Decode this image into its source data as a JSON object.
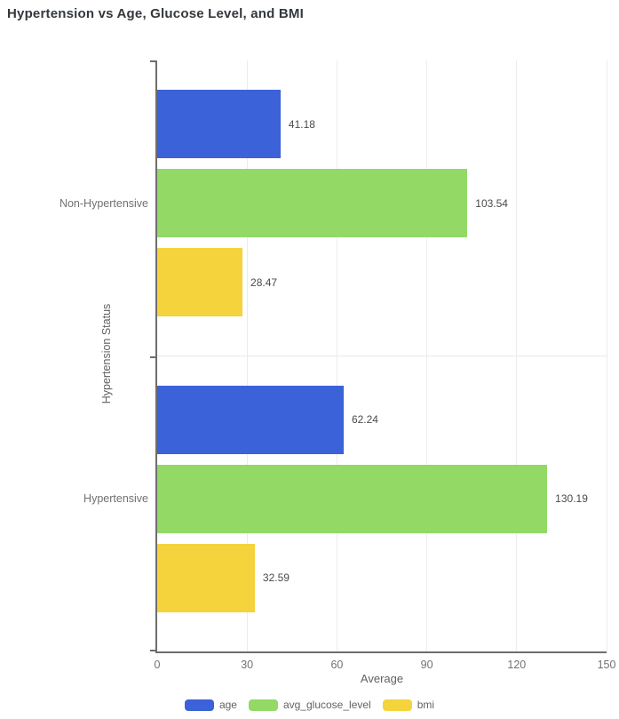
{
  "page": {
    "title": "Hypertension vs Age, Glucose Level, and BMI"
  },
  "chart_data": {
    "type": "bar",
    "orientation": "horizontal",
    "title": "Hypertension vs Age, Glucose Level, and BMI",
    "categories": [
      "Non-Hypertensive",
      "Hypertensive"
    ],
    "series": [
      {
        "name": "age",
        "color": "#3B62D8",
        "values": [
          41.18,
          62.24
        ]
      },
      {
        "name": "avg_glucose_level",
        "color": "#92D966",
        "values": [
          103.54,
          130.19
        ]
      },
      {
        "name": "bmi",
        "color": "#F5D33C",
        "values": [
          28.47,
          32.59
        ]
      }
    ],
    "xlabel": "Average",
    "ylabel": "Hypertension Status",
    "xlim": [
      0,
      150
    ],
    "xticks": [
      0,
      30,
      60,
      90,
      120,
      150
    ],
    "value_labels": true,
    "grid": "vertical-light",
    "legend_position": "bottom",
    "colors": {
      "axis": "#6E6E6E",
      "gridline": "#ECECEC",
      "tick_label": "#717171",
      "value_label": "#4A4A4A",
      "title": "#33383D"
    }
  }
}
